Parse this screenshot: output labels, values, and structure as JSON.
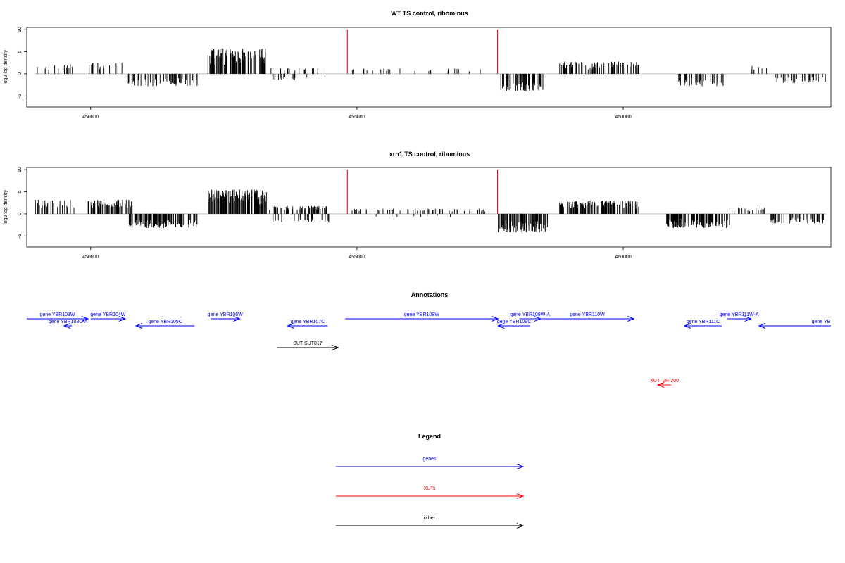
{
  "chart_data": [
    {
      "type": "bar",
      "title": "WT TS control, ribominus",
      "ylabel": "log2 log density",
      "xlabel": "",
      "xlim": [
        448800,
        463900
      ],
      "ylim": [
        -7.5,
        10.5
      ],
      "xticks": [
        450000,
        455000,
        460000
      ],
      "xtick_labels": [
        "450000",
        "455000",
        "460000"
      ],
      "yticks": [
        -5,
        0,
        5,
        10
      ],
      "ytick_labels": [
        "-5",
        "0",
        "5",
        "10"
      ],
      "markers": [
        454820,
        457640
      ],
      "regions": [
        {
          "from": 448950,
          "to": 449750,
          "sign": 1,
          "amp": 2.2,
          "n": 14
        },
        {
          "from": 449950,
          "to": 450600,
          "sign": 1,
          "amp": 2.5,
          "n": 16
        },
        {
          "from": 450700,
          "to": 452000,
          "sign": -1,
          "amp": 2.8,
          "n": 60
        },
        {
          "from": 452200,
          "to": 453300,
          "sign": 1,
          "amp": 5.8,
          "n": 110
        },
        {
          "from": 453300,
          "to": 454400,
          "sign": 1,
          "amp": 1.4,
          "n": 18
        },
        {
          "from": 453400,
          "to": 454200,
          "sign": -1,
          "amp": 1.4,
          "n": 14
        },
        {
          "from": 454900,
          "to": 457500,
          "sign": 1,
          "amp": 1.2,
          "n": 24
        },
        {
          "from": 457700,
          "to": 458500,
          "sign": -1,
          "amp": 4.0,
          "n": 60
        },
        {
          "from": 458800,
          "to": 460300,
          "sign": 1,
          "amp": 2.8,
          "n": 90
        },
        {
          "from": 461000,
          "to": 461900,
          "sign": -1,
          "amp": 2.8,
          "n": 45
        },
        {
          "from": 462300,
          "to": 462700,
          "sign": 1,
          "amp": 2.0,
          "n": 8
        },
        {
          "from": 462850,
          "to": 463800,
          "sign": -1,
          "amp": 2.2,
          "n": 35
        }
      ]
    },
    {
      "type": "bar",
      "title": "xrn1 TS control, ribominus",
      "ylabel": "log2 log density",
      "xlabel": "",
      "xlim": [
        448800,
        463900
      ],
      "ylim": [
        -7.5,
        10.5
      ],
      "xticks": [
        450000,
        455000,
        460000
      ],
      "xtick_labels": [
        "450000",
        "455000",
        "460000"
      ],
      "yticks": [
        -5,
        0,
        5,
        10
      ],
      "ytick_labels": [
        "-5",
        "0",
        "5",
        "10"
      ],
      "markers": [
        454820,
        457640
      ],
      "regions": [
        {
          "from": 448950,
          "to": 449750,
          "sign": 1,
          "amp": 3.2,
          "n": 30
        },
        {
          "from": 449950,
          "to": 450800,
          "sign": 1,
          "amp": 3.2,
          "n": 60
        },
        {
          "from": 450700,
          "to": 452000,
          "sign": -1,
          "amp": 3.2,
          "n": 120
        },
        {
          "from": 452200,
          "to": 453300,
          "sign": 1,
          "amp": 5.5,
          "n": 150
        },
        {
          "from": 453300,
          "to": 454500,
          "sign": 1,
          "amp": 1.8,
          "n": 60
        },
        {
          "from": 453400,
          "to": 454500,
          "sign": -1,
          "amp": 2.0,
          "n": 30
        },
        {
          "from": 454900,
          "to": 457500,
          "sign": 1,
          "amp": 1.2,
          "n": 60
        },
        {
          "from": 455000,
          "to": 457000,
          "sign": -1,
          "amp": 0.8,
          "n": 8
        },
        {
          "from": 457650,
          "to": 458600,
          "sign": -1,
          "amp": 4.2,
          "n": 100
        },
        {
          "from": 458800,
          "to": 460300,
          "sign": 1,
          "amp": 3.0,
          "n": 150
        },
        {
          "from": 460800,
          "to": 462000,
          "sign": -1,
          "amp": 3.2,
          "n": 110
        },
        {
          "from": 462000,
          "to": 462700,
          "sign": 1,
          "amp": 1.5,
          "n": 20
        },
        {
          "from": 462750,
          "to": 463800,
          "sign": -1,
          "amp": 2.2,
          "n": 50
        }
      ]
    }
  ],
  "annotations": {
    "title": "Annotations",
    "xlim": [
      448800,
      463900
    ],
    "features": [
      {
        "label": "gene YBR103W",
        "start": 448800,
        "end": 449950,
        "strand": "+",
        "row": 0,
        "color": "#0000ff"
      },
      {
        "label": "gene YBR103C-A",
        "start": 449500,
        "end": 449650,
        "strand": "-",
        "row": 1,
        "color": "#0000ff"
      },
      {
        "label": "gene YBR104W",
        "start": 450000,
        "end": 450650,
        "strand": "+",
        "row": 0,
        "color": "#0000ff"
      },
      {
        "label": "gene YBR105C",
        "start": 450850,
        "end": 451950,
        "strand": "-",
        "row": 1,
        "color": "#0000ff"
      },
      {
        "label": "gene YBR106W",
        "start": 452250,
        "end": 452800,
        "strand": "+",
        "row": 0,
        "color": "#0000ff"
      },
      {
        "label": "gene YBR107C",
        "start": 453700,
        "end": 454450,
        "strand": "-",
        "row": 1,
        "color": "#0000ff"
      },
      {
        "label": "gene YBR108W",
        "start": 454780,
        "end": 457650,
        "strand": "+",
        "row": 0,
        "color": "#0000ff"
      },
      {
        "label": "gene YBR109C",
        "start": 457650,
        "end": 458250,
        "strand": "-",
        "row": 1,
        "color": "#0000ff"
      },
      {
        "label": "gene YBR109W-A",
        "start": 458050,
        "end": 458450,
        "strand": "+",
        "row": 0,
        "color": "#0000ff"
      },
      {
        "label": "gene YBR110W",
        "start": 458450,
        "end": 460200,
        "strand": "+",
        "row": 0,
        "color": "#0000ff"
      },
      {
        "label": "gene YBR111C",
        "start": 461150,
        "end": 461850,
        "strand": "-",
        "row": 1,
        "color": "#0000ff"
      },
      {
        "label": "gene YBR111W-A",
        "start": 461950,
        "end": 462400,
        "strand": "+",
        "row": 0,
        "color": "#0000ff"
      },
      {
        "label": "gene YB",
        "start": 462550,
        "end": 463900,
        "strand": "-",
        "row": 1,
        "color": "#0000ff"
      },
      {
        "label": "SUT SUT017",
        "start": 453500,
        "end": 454650,
        "strand": "+",
        "row": 3,
        "color": "#000000"
      },
      {
        "label": "XUT_2R-200",
        "start": 460650,
        "end": 460900,
        "strand": "-",
        "row": 7,
        "color": "#ff0000"
      }
    ]
  },
  "legend": {
    "title": "Legend",
    "items": [
      {
        "label": "genes",
        "color": "#0000ff"
      },
      {
        "label": "XUTs",
        "color": "#ff0000"
      },
      {
        "label": "other",
        "color": "#000000"
      }
    ]
  }
}
